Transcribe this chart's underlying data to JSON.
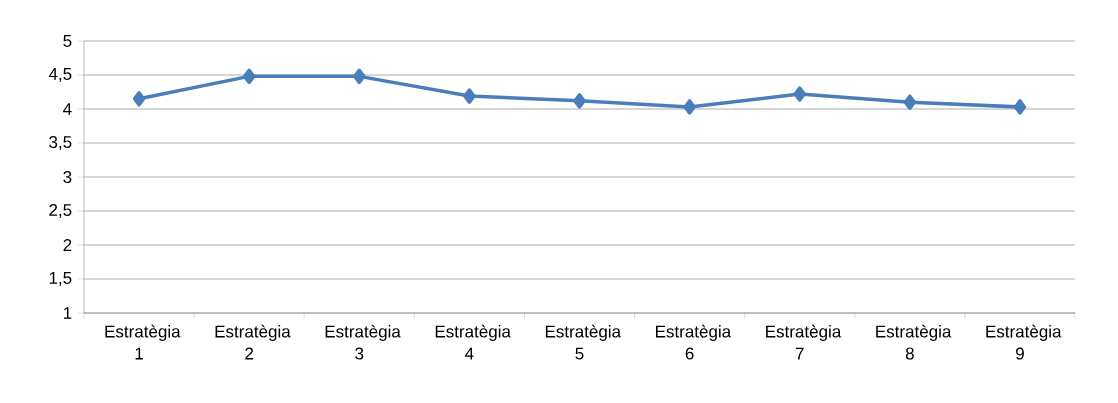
{
  "chart_data": {
    "type": "line",
    "categories": [
      "Estratègia 1",
      "Estratègia 2",
      "Estratègia 3",
      "Estratègia 4",
      "Estratègia 5",
      "Estratègia 6",
      "Estratègia 7",
      "Estratègia 8",
      "Estratègia 9"
    ],
    "series": [
      {
        "color": "#4a7ebb",
        "values": [
          4.15,
          4.48,
          4.48,
          4.19,
          4.12,
          4.03,
          4.22,
          4.1,
          4.03
        ]
      }
    ],
    "ylim": [
      1,
      5
    ],
    "yticks": [
      1,
      {
        "value": 1.5,
        "label": "1,5"
      },
      2,
      {
        "value": 2.5,
        "label": "2,5"
      },
      3,
      {
        "value": 3.5,
        "label": "3,5"
      },
      4,
      {
        "value": 4.5,
        "label": "4,5"
      },
      5
    ],
    "grid": "y",
    "marker": "diamond",
    "line_style": "solid"
  }
}
